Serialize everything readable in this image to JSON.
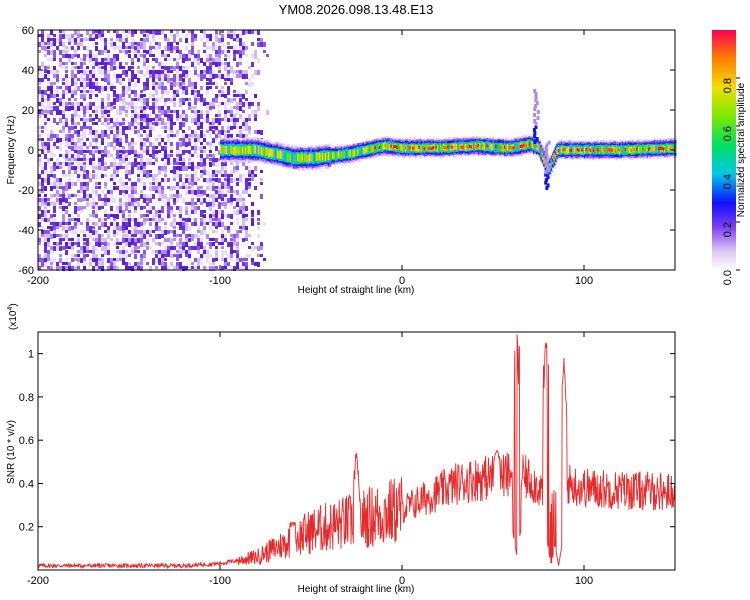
{
  "title": "YM08.2026.098.13.48.E13",
  "chart_data": [
    {
      "type": "heatmap",
      "name": "spectrogram",
      "xlabel": "Height of straight line (km)",
      "ylabel": "Frequency (Hz)",
      "xlim": [
        -200,
        150
      ],
      "ylim": [
        -60,
        60
      ],
      "xticks": [
        -200,
        -100,
        0,
        100
      ],
      "xtick_labels": [
        "-200",
        "-100",
        "0",
        "100"
      ],
      "yticks": [
        60,
        40,
        20,
        0,
        -20,
        -40,
        -60
      ],
      "ytick_labels": [
        "60",
        "40",
        "20",
        "0",
        "-20",
        "-40",
        "-60"
      ],
      "colorbar": {
        "label": "Normalized spectral amplitude",
        "range": [
          0,
          1
        ],
        "ticks": [
          0.0,
          0.2,
          0.4,
          0.6,
          0.8
        ],
        "tick_labels": [
          "0.0",
          "0.2",
          "0.4",
          "0.6",
          "0.8"
        ]
      },
      "noise_region_x": [
        -200,
        -90
      ],
      "ridge": [
        {
          "x": -100,
          "y": 0
        },
        {
          "x": -80,
          "y": 0
        },
        {
          "x": -70,
          "y": -2
        },
        {
          "x": -60,
          "y": -4
        },
        {
          "x": -50,
          "y": -4
        },
        {
          "x": -40,
          "y": -3
        },
        {
          "x": -30,
          "y": -2
        },
        {
          "x": -20,
          "y": 0
        },
        {
          "x": -10,
          "y": 2
        },
        {
          "x": 0,
          "y": 1
        },
        {
          "x": 20,
          "y": 1
        },
        {
          "x": 40,
          "y": 2
        },
        {
          "x": 60,
          "y": 1
        },
        {
          "x": 70,
          "y": 3
        },
        {
          "x": 75,
          "y": 1
        },
        {
          "x": 80,
          "y": -10
        },
        {
          "x": 85,
          "y": 0
        },
        {
          "x": 100,
          "y": 0
        },
        {
          "x": 120,
          "y": 0
        },
        {
          "x": 150,
          "y": 1
        }
      ]
    },
    {
      "type": "line",
      "name": "snr",
      "xlabel": "Height of straight line (km)",
      "ylabel": "SNR (10 * v/v)",
      "scale_label": "(x10",
      "scale_exponent": "4",
      "scale_close": ")",
      "color": "#e8292a",
      "xlim": [
        -200,
        150
      ],
      "ylim": [
        0,
        1.1
      ],
      "xticks": [
        -200,
        -100,
        0,
        100
      ],
      "xtick_labels": [
        "-200",
        "-100",
        "0",
        "100"
      ],
      "yticks": [
        0.2,
        0.4,
        0.6,
        0.8,
        1.0
      ],
      "ytick_labels": [
        "0.2",
        "0.4",
        "0.6",
        "0.8",
        "1"
      ],
      "envelope": [
        {
          "x": -200,
          "y": 0.02
        },
        {
          "x": -120,
          "y": 0.02
        },
        {
          "x": -100,
          "y": 0.03
        },
        {
          "x": -80,
          "y": 0.06
        },
        {
          "x": -70,
          "y": 0.1
        },
        {
          "x": -60,
          "y": 0.14
        },
        {
          "x": -50,
          "y": 0.18
        },
        {
          "x": -40,
          "y": 0.2
        },
        {
          "x": -30,
          "y": 0.22
        },
        {
          "x": -20,
          "y": 0.24
        },
        {
          "x": -10,
          "y": 0.26
        },
        {
          "x": 0,
          "y": 0.28
        },
        {
          "x": 10,
          "y": 0.32
        },
        {
          "x": 20,
          "y": 0.36
        },
        {
          "x": 30,
          "y": 0.4
        },
        {
          "x": 40,
          "y": 0.42
        },
        {
          "x": 50,
          "y": 0.43
        },
        {
          "x": 60,
          "y": 0.44
        },
        {
          "x": 70,
          "y": 0.42
        },
        {
          "x": 80,
          "y": 0.35
        },
        {
          "x": 90,
          "y": 0.4
        },
        {
          "x": 100,
          "y": 0.38
        },
        {
          "x": 120,
          "y": 0.37
        },
        {
          "x": 150,
          "y": 0.36
        }
      ],
      "peaks": [
        {
          "x": -60,
          "y": 0.22
        },
        {
          "x": -25,
          "y": 0.54
        },
        {
          "x": 52,
          "y": 0.55
        },
        {
          "x": 63,
          "y": 1.1
        },
        {
          "x": 79,
          "y": 1.05
        },
        {
          "x": 89,
          "y": 0.98
        }
      ],
      "dips": [
        {
          "x": 63,
          "y": 0.07
        },
        {
          "x": 82,
          "y": 0.02
        },
        {
          "x": 86,
          "y": 0.02
        }
      ]
    }
  ]
}
